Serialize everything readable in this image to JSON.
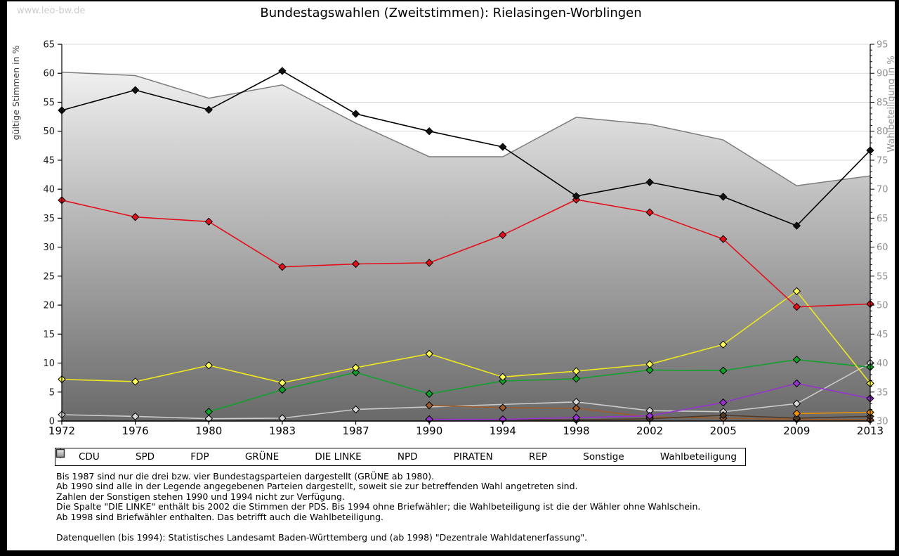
{
  "page": {
    "watermark": "www.leo-bw.de",
    "title": "Bundestagswahlen (Zweitstimmen): Rielasingen-Worblingen"
  },
  "chart_data": {
    "type": "line",
    "title": "Bundestagswahlen (Zweitstimmen): Rielasingen-Worblingen",
    "categories": [
      "1972",
      "1976",
      "1980",
      "1983",
      "1987",
      "1990",
      "1994",
      "1998",
      "2002",
      "2005",
      "2009",
      "2013"
    ],
    "left_axis": {
      "label": "gültige Stimmen in %",
      "min": 0,
      "max": 65,
      "tick_step": 5
    },
    "right_axis": {
      "label": "Wahlbeteiligung in %",
      "min": 30,
      "max": 95,
      "tick_step": 5
    },
    "grid": true,
    "legend_position": "bottom",
    "series": [
      {
        "name": "CDU",
        "axis": "left",
        "type": "line",
        "color": "#000000",
        "marker_color": "#111111",
        "values": [
          53.6,
          57.1,
          53.7,
          60.4,
          53.0,
          50.0,
          47.3,
          38.8,
          41.2,
          38.7,
          33.7,
          46.7
        ]
      },
      {
        "name": "SPD",
        "axis": "left",
        "type": "line",
        "color": "#e3101c",
        "marker_color": "#e3101c",
        "values": [
          38.1,
          35.2,
          34.4,
          26.6,
          27.1,
          27.3,
          32.1,
          38.2,
          36.0,
          31.4,
          19.7,
          20.2
        ]
      },
      {
        "name": "FDP",
        "axis": "left",
        "type": "line",
        "color": "#efe81e",
        "marker_color": "#ffff55",
        "values": [
          7.2,
          6.8,
          9.6,
          6.6,
          9.2,
          11.6,
          7.6,
          8.6,
          9.8,
          13.2,
          22.4,
          6.5
        ]
      },
      {
        "name": "GRÜNE",
        "axis": "left",
        "type": "line",
        "color": "#12a12d",
        "marker_color": "#0da32a",
        "values": [
          null,
          null,
          1.6,
          5.4,
          8.4,
          4.7,
          6.9,
          7.3,
          8.8,
          8.7,
          10.6,
          9.3
        ]
      },
      {
        "name": "DIE LINKE",
        "axis": "left",
        "type": "line",
        "color": "#9633cc",
        "marker_color": "#9633cc",
        "values": [
          null,
          null,
          null,
          null,
          null,
          0.3,
          0.3,
          0.6,
          0.9,
          3.2,
          6.5,
          3.9
        ]
      },
      {
        "name": "NPD",
        "axis": "left",
        "type": "line",
        "color": "#4f3a28",
        "marker_color": "#4f3a28",
        "values": [
          null,
          null,
          null,
          null,
          null,
          0.3,
          null,
          0.2,
          0.4,
          1.0,
          0.5,
          0.8
        ]
      },
      {
        "name": "PIRATEN",
        "axis": "left",
        "type": "line",
        "color": "#f39200",
        "marker_color": "#f39200",
        "values": [
          null,
          null,
          null,
          null,
          null,
          null,
          null,
          null,
          null,
          null,
          1.3,
          1.5
        ]
      },
      {
        "name": "REP",
        "axis": "left",
        "type": "line",
        "color": "#9e5c2d",
        "marker_color": "#9e5c2d",
        "values": [
          null,
          null,
          null,
          null,
          null,
          2.7,
          2.3,
          2.2,
          0.7,
          0.5,
          0.3,
          0.2
        ]
      },
      {
        "name": "Sonstige",
        "axis": "left",
        "type": "line",
        "color": "#cccccc",
        "marker_color": "#d8d8d8",
        "values": [
          1.1,
          0.8,
          0.4,
          0.5,
          2.0,
          null,
          null,
          3.3,
          1.8,
          1.6,
          3.0,
          10.0
        ]
      },
      {
        "name": "Wahlbeteiligung",
        "axis": "right",
        "type": "area",
        "color": "#7d7d7d",
        "fill_top": "#fafafa",
        "fill_bottom": "#696969",
        "values": [
          90.2,
          89.6,
          85.7,
          88.0,
          81.4,
          75.6,
          75.6,
          82.4,
          81.2,
          78.5,
          70.6,
          72.3
        ]
      }
    ]
  },
  "legend": {
    "items": [
      {
        "label": "CDU",
        "marker": "diamond",
        "color": "#111111"
      },
      {
        "label": "SPD",
        "marker": "diamond",
        "color": "#e3101c"
      },
      {
        "label": "FDP",
        "marker": "diamond",
        "color": "#ffff55"
      },
      {
        "label": "GRÜNE",
        "marker": "diamond",
        "color": "#0da32a"
      },
      {
        "label": "DIE LINKE",
        "marker": "diamond",
        "color": "#9633cc"
      },
      {
        "label": "NPD",
        "marker": "diamond",
        "color": "#4f3a28"
      },
      {
        "label": "PIRATEN",
        "marker": "diamond",
        "color": "#f39200"
      },
      {
        "label": "REP",
        "marker": "diamond",
        "color": "#9e5c2d"
      },
      {
        "label": "Sonstige",
        "marker": "diamond",
        "color": "#d8d8d8"
      },
      {
        "label": "Wahlbeteiligung",
        "marker": "square",
        "color": "#aaaaaa"
      }
    ]
  },
  "footnotes": {
    "lines": [
      "Bis 1987 sind nur die drei bzw. vier Bundestagsparteien dargestellt (GRÜNE ab 1980).",
      "Ab 1990 sind alle in der Legende angegebenen Parteien dargestellt, soweit sie zur betreffenden Wahl angetreten sind.",
      "Zahlen der Sonstigen stehen 1990 und 1994 nicht zur Verfügung.",
      "Die Spalte \"DIE LINKE\" enthält bis 2002 die Stimmen der PDS. Bis 1994 ohne Briefwähler; die Wahlbeteiligung ist die der Wähler ohne Wahlschein.",
      "Ab 1998 sind Briefwähler enthalten. Das betrifft auch die Wahlbeteiligung."
    ],
    "source": "Datenquellen (bis 1994): Statistisches Landesamt Baden-Württemberg und (ab 1998) \"Dezentrale Wahldatenerfassung\"."
  }
}
